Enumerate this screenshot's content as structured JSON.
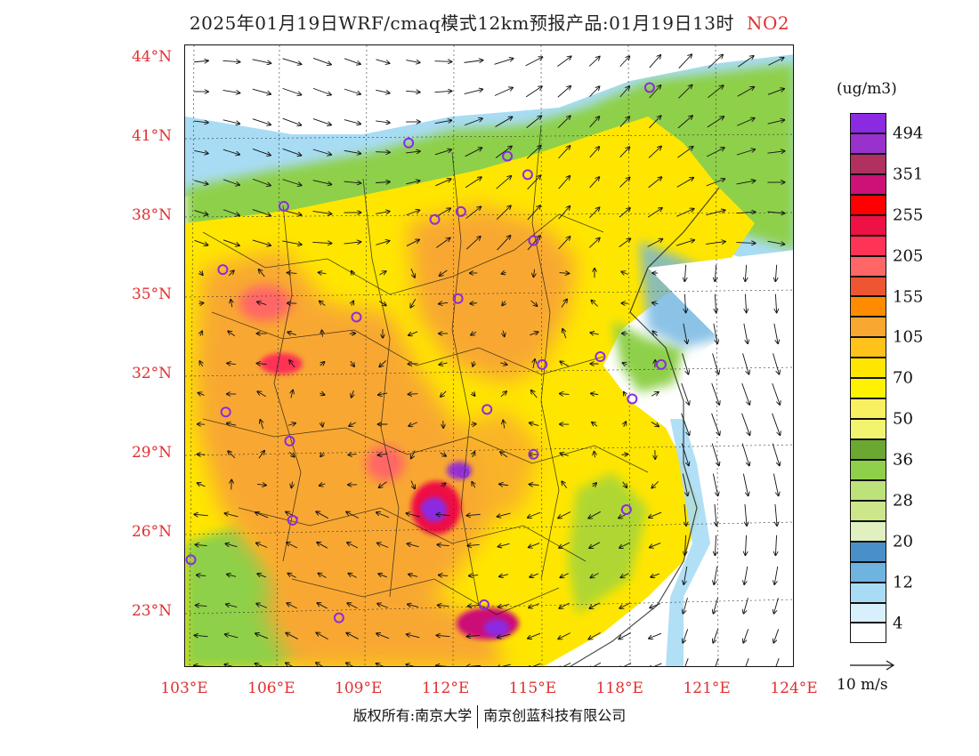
{
  "header": {
    "title": "2025年01月19日WRF/cmaq模式12km预报产品:01月19日13时",
    "species": "NO2"
  },
  "axes": {
    "lat_labels": [
      "44°N",
      "41°N",
      "38°N",
      "35°N",
      "32°N",
      "29°N",
      "26°N",
      "23°N"
    ],
    "lat_values": [
      44,
      41,
      38,
      35,
      32,
      29,
      26,
      23
    ],
    "lon_labels": [
      "103°E",
      "106°E",
      "109°E",
      "112°E",
      "115°E",
      "118°E",
      "121°E",
      "124°E"
    ],
    "lon_values": [
      103,
      106,
      109,
      112,
      115,
      118,
      121,
      124
    ],
    "lat_range": [
      20.9,
      44.5
    ],
    "lon_range": [
      103,
      124
    ]
  },
  "legend": {
    "unit": "(ug/m3)",
    "colors": [
      "#8a2be2",
      "#9932cc",
      "#b03060",
      "#cc1177",
      "#ff0000",
      "#ee1144",
      "#ff3355",
      "#ff6666",
      "#ee5533",
      "#ff8c00",
      "#f8a830",
      "#ffc21a",
      "#ffe600",
      "#fff200",
      "#f8f060",
      "#f2f470",
      "#6aa832",
      "#8ed04a",
      "#bce27a",
      "#cde68a",
      "#e0f0c0",
      "#4a90c8",
      "#6fb4e0",
      "#a8dcf5",
      "#d8f0fc",
      "#ffffff"
    ],
    "labels": [
      "494",
      "351",
      "255",
      "205",
      "155",
      "105",
      "70",
      "50",
      "36",
      "28",
      "20",
      "12",
      "4"
    ]
  },
  "vector_ref": "10 m/s",
  "footer": {
    "left": "版权所有:南京大学",
    "right": "南京创蓝科技有限公司"
  },
  "map": {
    "cities": [
      {
        "lon": 119.0,
        "lat": 42.9
      },
      {
        "lon": 110.7,
        "lat": 40.8
      },
      {
        "lon": 114.1,
        "lat": 40.3
      },
      {
        "lon": 114.8,
        "lat": 39.6
      },
      {
        "lon": 106.4,
        "lat": 38.4
      },
      {
        "lon": 111.6,
        "lat": 37.9
      },
      {
        "lon": 112.5,
        "lat": 38.2
      },
      {
        "lon": 115.0,
        "lat": 37.1
      },
      {
        "lon": 104.3,
        "lat": 36.0
      },
      {
        "lon": 112.4,
        "lat": 34.9
      },
      {
        "lon": 108.9,
        "lat": 34.2
      },
      {
        "lon": 117.3,
        "lat": 32.7
      },
      {
        "lon": 115.3,
        "lat": 32.4
      },
      {
        "lon": 119.4,
        "lat": 32.4
      },
      {
        "lon": 118.4,
        "lat": 31.1
      },
      {
        "lon": 104.4,
        "lat": 30.6
      },
      {
        "lon": 113.4,
        "lat": 30.7
      },
      {
        "lon": 106.6,
        "lat": 29.5
      },
      {
        "lon": 115.0,
        "lat": 29.0
      },
      {
        "lon": 112.6,
        "lat": 28.3
      },
      {
        "lon": 111.3,
        "lat": 27.0
      },
      {
        "lon": 106.7,
        "lat": 26.5
      },
      {
        "lon": 118.2,
        "lat": 26.9
      },
      {
        "lon": 103.2,
        "lat": 25.0
      },
      {
        "lon": 108.3,
        "lat": 22.8
      },
      {
        "lon": 113.3,
        "lat": 23.3
      }
    ]
  }
}
